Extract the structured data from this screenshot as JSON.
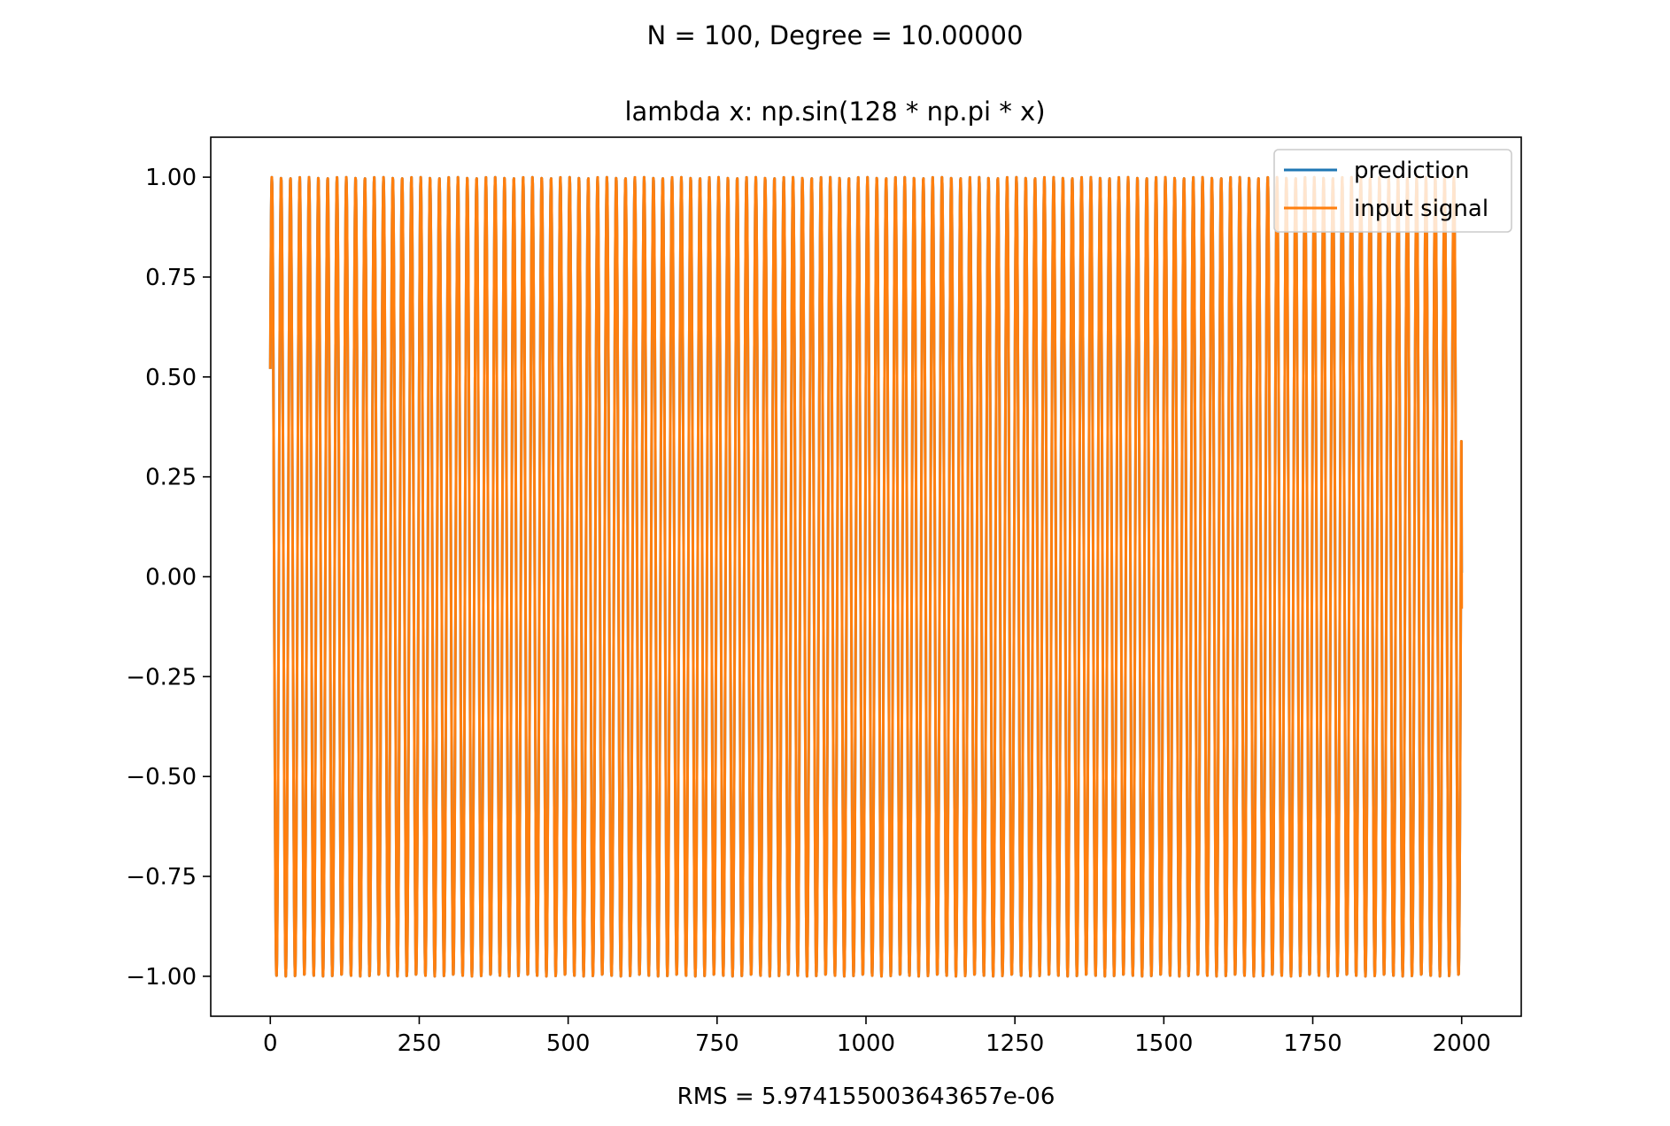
{
  "figure": {
    "suptitle": "N = 100, Degree = 10.00000",
    "xlabel": "RMS = 5.974155003643657e-06"
  },
  "chart_data": {
    "type": "line",
    "title": "lambda x: np.sin(128 * np.pi * x)",
    "xlabel": "RMS = 5.974155003643657e-06",
    "ylabel": "",
    "xlim": [
      -100,
      2100
    ],
    "ylim": [
      -1.1,
      1.1
    ],
    "x_ticks": [
      0,
      250,
      500,
      750,
      1000,
      1250,
      1500,
      1750,
      2000
    ],
    "x_tick_labels": [
      "0",
      "250",
      "500",
      "750",
      "1000",
      "1250",
      "1500",
      "1750",
      "2000"
    ],
    "y_ticks": [
      1.0,
      0.75,
      0.5,
      0.25,
      0.0,
      -0.25,
      -0.5,
      -0.75,
      -1.0
    ],
    "y_tick_labels": [
      "1.00",
      "0.75",
      "0.50",
      "0.25",
      "0.00",
      "−0.25",
      "−0.50",
      "−0.75",
      "−1.00"
    ],
    "grid": false,
    "legend_position": "top-right",
    "series": [
      {
        "name": "prediction",
        "color": "#1f77b4",
        "x_range": [
          0,
          2000
        ],
        "formula": "sin(128*pi*x/1000 + 0.55)",
        "start_value": 0.52,
        "end_value": 0.01
      },
      {
        "name": "input signal",
        "color": "#ff7f0e",
        "x_range": [
          0,
          2000
        ],
        "formula": "sin(128*pi*x/1000 + 0.55)",
        "start_value": 0.52,
        "end_value": -0.08
      }
    ]
  }
}
